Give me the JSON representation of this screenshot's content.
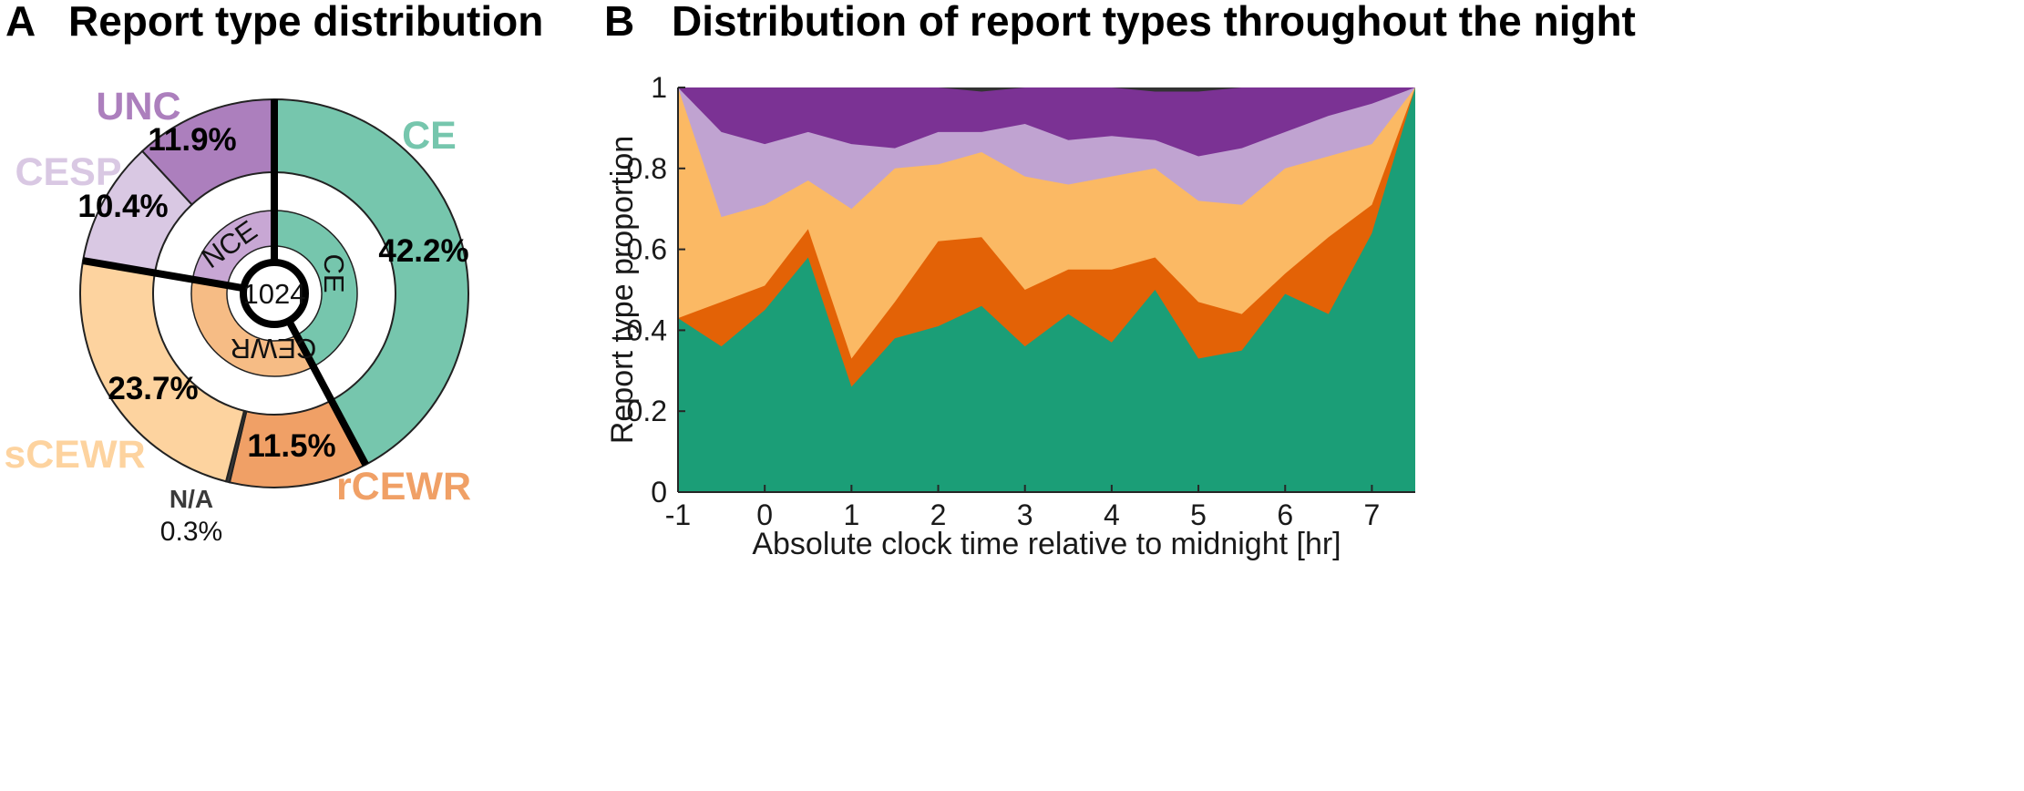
{
  "panels": {
    "a": {
      "letter": "A",
      "title": "Report type distribution"
    },
    "b": {
      "letter": "B",
      "title": "Distribution of report types throughout the night"
    }
  },
  "colors": {
    "CE": "#76c6ad",
    "rCEWR": "#f0a066",
    "sCEWR": "#fdd39f",
    "NA": "#3a3a3a",
    "CESP": "#d9c8e3",
    "UNC": "#ac7fbd",
    "CE_inner": "#76c6ad",
    "CEWR_inner": "#f6bc85",
    "NCE_inner": "#c8a7d4",
    "area_CE": "#1b9e77",
    "area_rCEWR": "#e36206",
    "area_sCEWR": "#fbb964",
    "area_CESP": "#c0a3d1",
    "area_UNC": "#7b3294",
    "area_NA": "#333333"
  },
  "chart_data": [
    {
      "type": "pie",
      "title": "Report type distribution",
      "center_label": "1024",
      "slices": [
        {
          "name": "CE",
          "value": 42.2,
          "label": "42.2%"
        },
        {
          "name": "rCEWR",
          "value": 11.5,
          "label": "11.5%"
        },
        {
          "name": "N/A",
          "value": 0.3,
          "label": "0.3%"
        },
        {
          "name": "sCEWR",
          "value": 23.7,
          "label": "23.7%"
        },
        {
          "name": "CESP",
          "value": 10.4,
          "label": "10.4%"
        },
        {
          "name": "UNC",
          "value": 11.9,
          "label": "11.9%"
        }
      ],
      "inner_groups": [
        {
          "name": "CE",
          "value": 42.2
        },
        {
          "name": "CEWR",
          "value": 35.5
        },
        {
          "name": "NCE",
          "value": 22.3
        }
      ]
    },
    {
      "type": "area",
      "title": "Distribution of report types throughout the night",
      "xlabel": "Absolute clock time relative to midnight [hr]",
      "ylabel": "Report type proportion",
      "xlim": [
        -1,
        7.5
      ],
      "ylim": [
        0,
        1
      ],
      "xticks": [
        -1,
        0,
        1,
        2,
        3,
        4,
        5,
        6,
        7
      ],
      "yticks": [
        0,
        0.2,
        0.4,
        0.6,
        0.8,
        1
      ],
      "stacked": true,
      "x": [
        -1,
        -0.5,
        0,
        0.5,
        1,
        1.5,
        2,
        2.5,
        3,
        3.5,
        4,
        4.5,
        5,
        5.5,
        6,
        6.5,
        7,
        7.5
      ],
      "cumulative": [
        {
          "name": "CE",
          "values": [
            0.43,
            0.36,
            0.45,
            0.58,
            0.26,
            0.38,
            0.41,
            0.46,
            0.36,
            0.44,
            0.37,
            0.5,
            0.33,
            0.35,
            0.49,
            0.44,
            0.64,
            1.0
          ]
        },
        {
          "name": "rCEWR",
          "values": [
            0.43,
            0.47,
            0.51,
            0.65,
            0.33,
            0.47,
            0.62,
            0.63,
            0.5,
            0.55,
            0.55,
            0.58,
            0.47,
            0.44,
            0.54,
            0.63,
            0.71,
            1.0
          ]
        },
        {
          "name": "sCEWR",
          "values": [
            1.0,
            0.68,
            0.71,
            0.77,
            0.7,
            0.8,
            0.81,
            0.84,
            0.78,
            0.76,
            0.78,
            0.8,
            0.72,
            0.71,
            0.8,
            0.83,
            0.86,
            1.0
          ]
        },
        {
          "name": "CESP",
          "values": [
            1.0,
            0.89,
            0.86,
            0.89,
            0.86,
            0.85,
            0.89,
            0.89,
            0.91,
            0.87,
            0.88,
            0.87,
            0.83,
            0.85,
            0.89,
            0.93,
            0.96,
            1.0
          ]
        },
        {
          "name": "UNC",
          "values": [
            1.0,
            1.0,
            1.0,
            1.0,
            1.0,
            1.0,
            1.0,
            0.99,
            1.0,
            1.0,
            1.0,
            0.99,
            0.99,
            1.0,
            1.0,
            1.0,
            1.0,
            1.0
          ]
        },
        {
          "name": "N/A",
          "values": [
            1.0,
            1.0,
            1.0,
            1.0,
            1.0,
            1.0,
            1.0,
            1.0,
            1.0,
            1.0,
            1.0,
            1.0,
            1.0,
            1.0,
            1.0,
            1.0,
            1.0,
            1.0
          ]
        }
      ]
    }
  ]
}
